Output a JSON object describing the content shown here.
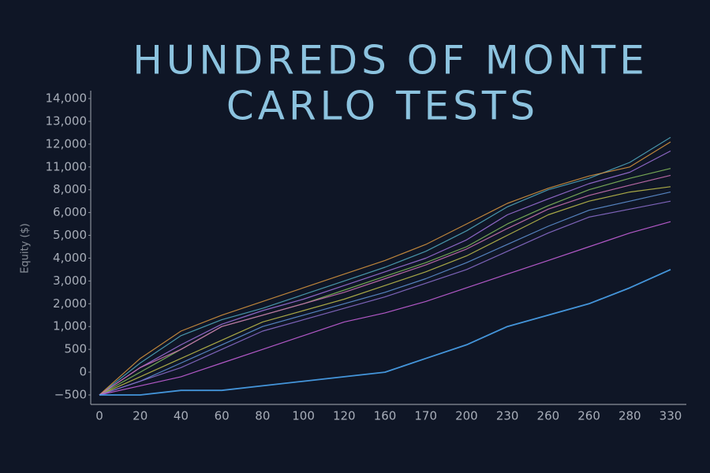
{
  "chart_data": {
    "type": "line",
    "title_lines": [
      "HUNDREDS OF MONTE",
      "CARLO TESTS"
    ],
    "y_label": "Equity ($)",
    "categories": [
      "0",
      "20",
      "40",
      "60",
      "80",
      "100",
      "120",
      "160",
      "170",
      "200",
      "230",
      "260",
      "260",
      "280",
      "330"
    ],
    "yticks": [
      {
        "value": -500,
        "label": "−500"
      },
      0,
      500,
      {
        "value": 1000,
        "label": "1,000"
      },
      {
        "value": 2000,
        "label": "2,000"
      },
      {
        "value": 3000,
        "label": "3,000"
      },
      {
        "value": 4000,
        "label": "4,000"
      },
      {
        "value": 5000,
        "label": "5,000"
      },
      {
        "value": 6000,
        "label": "6,000"
      },
      {
        "value": 8000,
        "label": "8,000"
      },
      {
        "value": 11000,
        "label": "11,000"
      },
      {
        "value": 12000,
        "label": "12,000"
      },
      {
        "value": 13000,
        "label": "13,000"
      },
      {
        "value": 14000,
        "label": "14,000"
      }
    ],
    "series": [
      {
        "color": "#4fa3b8",
        "values": [
          -500,
          200,
          800,
          1300,
          1800,
          2400,
          3000,
          3600,
          4300,
          5200,
          6500,
          8000,
          9500,
          11200,
          12300
        ]
      },
      {
        "color": "#d2913e",
        "values": [
          -500,
          300,
          900,
          1500,
          2100,
          2700,
          3300,
          3900,
          4600,
          5500,
          6800,
          8200,
          9800,
          11000,
          12100
        ]
      },
      {
        "color": "#9b6fd6",
        "values": [
          -500,
          100,
          600,
          1100,
          1700,
          2200,
          2800,
          3400,
          4000,
          4800,
          5900,
          7200,
          8800,
          10300,
          11700
        ]
      },
      {
        "color": "#7fb55a",
        "values": [
          -500,
          0,
          500,
          1000,
          1500,
          2000,
          2600,
          3200,
          3800,
          4500,
          5500,
          6600,
          8000,
          9500,
          10800
        ]
      },
      {
        "color": "#c86fb0",
        "values": [
          -500,
          100,
          500,
          1000,
          1500,
          2000,
          2500,
          3100,
          3700,
          4400,
          5300,
          6300,
          7500,
          8600,
          9900
        ]
      },
      {
        "color": "#b9b84a",
        "values": [
          -500,
          -100,
          300,
          700,
          1200,
          1700,
          2200,
          2800,
          3400,
          4100,
          5000,
          5900,
          7000,
          7800,
          8400
        ]
      },
      {
        "color": "#5d8fd0",
        "values": [
          -500,
          -200,
          200,
          600,
          1000,
          1500,
          2000,
          2500,
          3100,
          3800,
          4600,
          5400,
          6200,
          7000,
          7800
        ]
      },
      {
        "color": "#8a6cc9",
        "values": [
          -500,
          -200,
          100,
          500,
          900,
          1300,
          1800,
          2300,
          2900,
          3500,
          4300,
          5100,
          5800,
          6300,
          7000
        ]
      },
      {
        "color": "#c45fd8",
        "values": [
          -500,
          -300,
          -100,
          200,
          500,
          800,
          1200,
          1600,
          2100,
          2700,
          3300,
          3900,
          4500,
          5100,
          5600
        ]
      },
      {
        "color": "#4aa3ee",
        "values": [
          -500,
          -500,
          -400,
          -400,
          -300,
          -200,
          -100,
          0,
          300,
          600,
          1000,
          1500,
          2000,
          2700,
          3500
        ]
      }
    ]
  }
}
